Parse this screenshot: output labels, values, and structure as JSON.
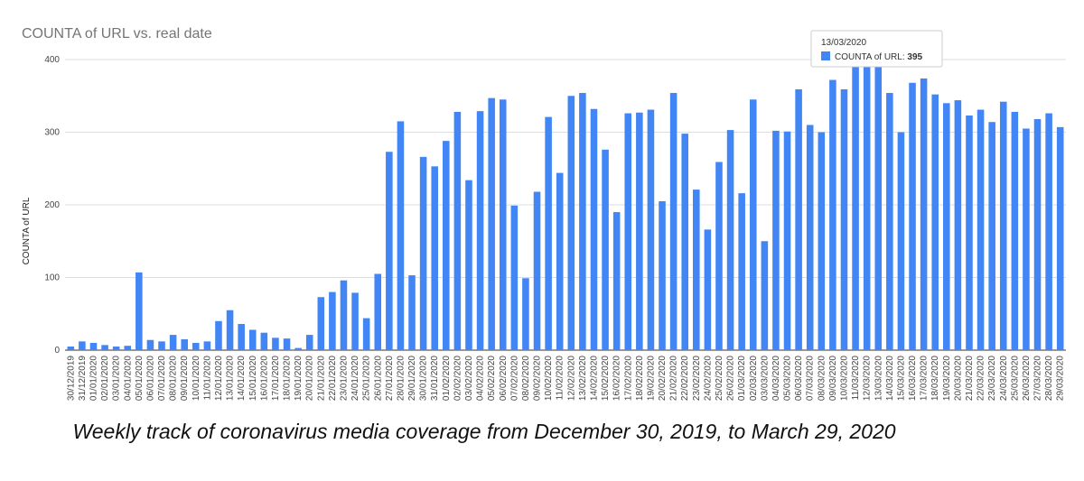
{
  "chart_data": {
    "type": "bar",
    "title": "COUNTA of URL vs. real date",
    "ylabel": "COUNTA of URL",
    "xlabel": "",
    "ylim": [
      0,
      400
    ],
    "yticks": [
      0,
      100,
      200,
      300,
      400
    ],
    "grid": true,
    "bar_color": "#4285f4",
    "categories": [
      "30/12/2019",
      "31/12/2019",
      "01/01/2020",
      "02/01/2020",
      "03/01/2020",
      "04/01/2020",
      "05/01/2020",
      "06/01/2020",
      "07/01/2020",
      "08/01/2020",
      "09/01/2020",
      "10/01/2020",
      "11/01/2020",
      "12/01/2020",
      "13/01/2020",
      "14/01/2020",
      "15/01/2020",
      "16/01/2020",
      "17/01/2020",
      "18/01/2020",
      "19/01/2020",
      "20/01/2020",
      "21/01/2020",
      "22/01/2020",
      "23/01/2020",
      "24/01/2020",
      "25/01/2020",
      "26/01/2020",
      "27/01/2020",
      "28/01/2020",
      "29/01/2020",
      "30/01/2020",
      "31/01/2020",
      "01/02/2020",
      "02/02/2020",
      "03/02/2020",
      "04/02/2020",
      "05/02/2020",
      "06/02/2020",
      "07/02/2020",
      "08/02/2020",
      "09/02/2020",
      "10/02/2020",
      "11/02/2020",
      "12/02/2020",
      "13/02/2020",
      "14/02/2020",
      "15/02/2020",
      "16/02/2020",
      "17/02/2020",
      "18/02/2020",
      "19/02/2020",
      "20/02/2020",
      "21/02/2020",
      "22/02/2020",
      "23/02/2020",
      "24/02/2020",
      "25/02/2020",
      "26/02/2020",
      "01/03/2020",
      "02/03/2020",
      "03/03/2020",
      "04/03/2020",
      "05/03/2020",
      "06/03/2020",
      "07/03/2020",
      "08/03/2020",
      "09/03/2020",
      "10/03/2020",
      "11/03/2020",
      "12/03/2020",
      "13/03/2020",
      "14/03/2020",
      "15/03/2020",
      "16/03/2020",
      "17/03/2020",
      "18/03/2020",
      "19/03/2020",
      "20/03/2020",
      "21/03/2020",
      "22/03/2020",
      "23/03/2020",
      "24/03/2020",
      "25/03/2020",
      "26/03/2020",
      "27/03/2020",
      "28/03/2020",
      "29/03/2020"
    ],
    "series": [
      {
        "values": [
          5,
          12,
          10,
          7,
          5,
          6,
          107,
          14,
          12,
          21,
          15,
          10,
          12,
          40,
          55,
          36,
          28,
          24,
          17,
          16,
          3,
          21,
          73,
          80,
          96,
          79,
          44,
          105,
          273,
          315,
          103,
          266,
          253,
          288,
          328,
          234,
          329,
          347,
          345,
          199,
          99,
          218,
          321,
          244,
          350,
          354,
          332,
          276,
          190,
          326,
          327,
          331,
          205,
          354,
          298,
          221,
          166,
          259,
          303,
          216,
          345,
          150,
          302,
          301,
          359,
          310,
          300,
          372,
          359,
          400,
          400,
          395,
          354,
          300,
          368,
          374,
          352,
          340,
          344,
          323,
          331,
          314,
          342,
          328,
          305,
          318,
          326,
          307
        ]
      }
    ],
    "tooltip": {
      "category": "13/03/2020",
      "series_label": "COUNTA of URL",
      "value": "395"
    }
  },
  "caption": "Weekly track of coronavirus media coverage from December 30, 2019, to March 29, 2020"
}
